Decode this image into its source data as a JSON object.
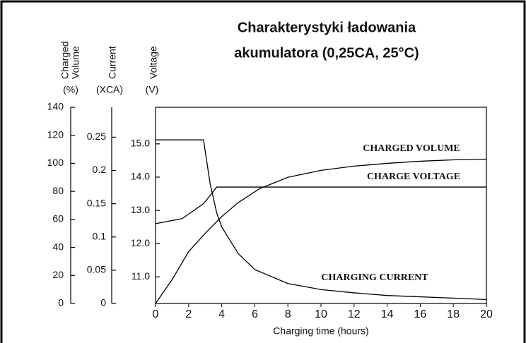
{
  "chart_data": {
    "type": "line",
    "title": [
      "Charakterystyki ładowania",
      "akumulatora (0,25CA, 25°C)"
    ],
    "xlabel": "Charging time (hours)",
    "ylabel": [
      "Charged",
      "Volume"
    ],
    "yunit": "(%)",
    "y2label": "Current",
    "y2unit": "(XCA)",
    "y3label": "Voltage",
    "y3unit": "(V)",
    "xlim": [
      0,
      20
    ],
    "xticks": [
      0,
      2,
      4,
      6,
      8,
      10,
      12,
      14,
      16,
      18,
      20
    ],
    "ylim": [
      0,
      140
    ],
    "yticks": [
      0,
      20,
      40,
      60,
      80,
      100,
      120,
      140
    ],
    "y2lim": [
      0,
      0.295
    ],
    "y2ticks": [
      0,
      0.05,
      0.1,
      0.15,
      0.2,
      0.25
    ],
    "y3lim": [
      10.2,
      16.1
    ],
    "y3ticks": [
      {
        "value": 11,
        "label": "11.0"
      },
      {
        "value": 12,
        "label": "12.0"
      },
      {
        "value": 13,
        "label": "13.0"
      },
      {
        "value": 14,
        "label": "14.0"
      },
      {
        "value": 15,
        "label": "15.0"
      }
    ],
    "series": [
      {
        "name": "CHARGED VOLUME",
        "color": "#000000",
        "axis": "y",
        "x": [
          0,
          1,
          2,
          3,
          4,
          5,
          6.3,
          8,
          10,
          12,
          14,
          16,
          18,
          20
        ],
        "values": [
          0,
          17,
          37,
          50,
          62,
          72,
          82,
          90,
          95,
          98,
          100,
          101.5,
          102.5,
          103
        ]
      },
      {
        "name": "CHARGE VOLTAGE",
        "color": "#000000",
        "axis": "y3",
        "x": [
          0,
          1.6,
          2.9,
          3.7,
          20
        ],
        "values": [
          12.6,
          12.75,
          13.2,
          13.7,
          13.7
        ]
      },
      {
        "name": "CHARGING CURRENT",
        "color": "#000000",
        "axis": "y2",
        "x": [
          0,
          2.9,
          3.3,
          3.7,
          4,
          5,
          6,
          8,
          10,
          12,
          14,
          16,
          20
        ],
        "values": [
          0.246,
          0.246,
          0.18,
          0.136,
          0.115,
          0.075,
          0.051,
          0.03,
          0.021,
          0.016,
          0.012,
          0.01,
          0.006
        ]
      }
    ]
  }
}
